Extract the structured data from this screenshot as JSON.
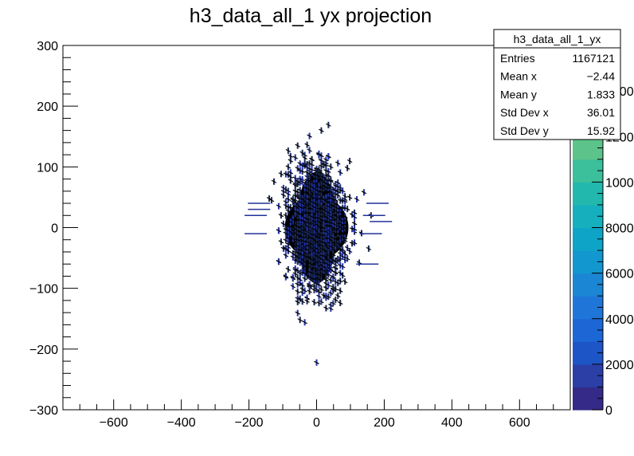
{
  "chart_data": {
    "type": "scatter",
    "title": "h3_data_all_1 yx projection",
    "xlabel": "",
    "ylabel": "",
    "xlim": [
      -750,
      750
    ],
    "ylim": [
      -300,
      300
    ],
    "x_ticks": [
      -600,
      -400,
      -200,
      0,
      200,
      400,
      600
    ],
    "x_tick_labels": [
      "−600",
      "−400",
      "−200",
      "0",
      "200",
      "400",
      "600"
    ],
    "y_ticks": [
      -300,
      -200,
      -100,
      0,
      100,
      200,
      300
    ],
    "y_tick_labels": [
      "−300",
      "−200",
      "−100",
      "0",
      "100",
      "200",
      "300"
    ],
    "colorbar": {
      "min": 0,
      "max": 16000,
      "ticks": [
        0,
        2000,
        4000,
        6000,
        8000,
        10000,
        12000,
        14000
      ],
      "tick_labels": [
        "0",
        "2000",
        "4000",
        "6000",
        "8000",
        "10000",
        "12000",
        "14000"
      ],
      "colors": [
        "#352a87",
        "#2c3fa7",
        "#1d55c6",
        "#1c66d6",
        "#2076d8",
        "#1a86d4",
        "#1297cf",
        "#0ea4c8",
        "#16afbd",
        "#22b8ad",
        "#3cbf9b",
        "#5cc38a",
        "#7fc57a",
        "#a0c26c",
        "#bebe5f",
        "#d7bb52"
      ]
    },
    "stats": {
      "name": "h3_data_all_1_yx",
      "rows": [
        {
          "label": "Entries",
          "value": "1167121"
        },
        {
          "label": "Mean x",
          "value": "−2.44"
        },
        {
          "label": "Mean y",
          "value": "1.833"
        },
        {
          "label": "Std Dev x",
          "value": "36.01"
        },
        {
          "label": "Std Dev y",
          "value": "15.92"
        }
      ]
    }
  }
}
